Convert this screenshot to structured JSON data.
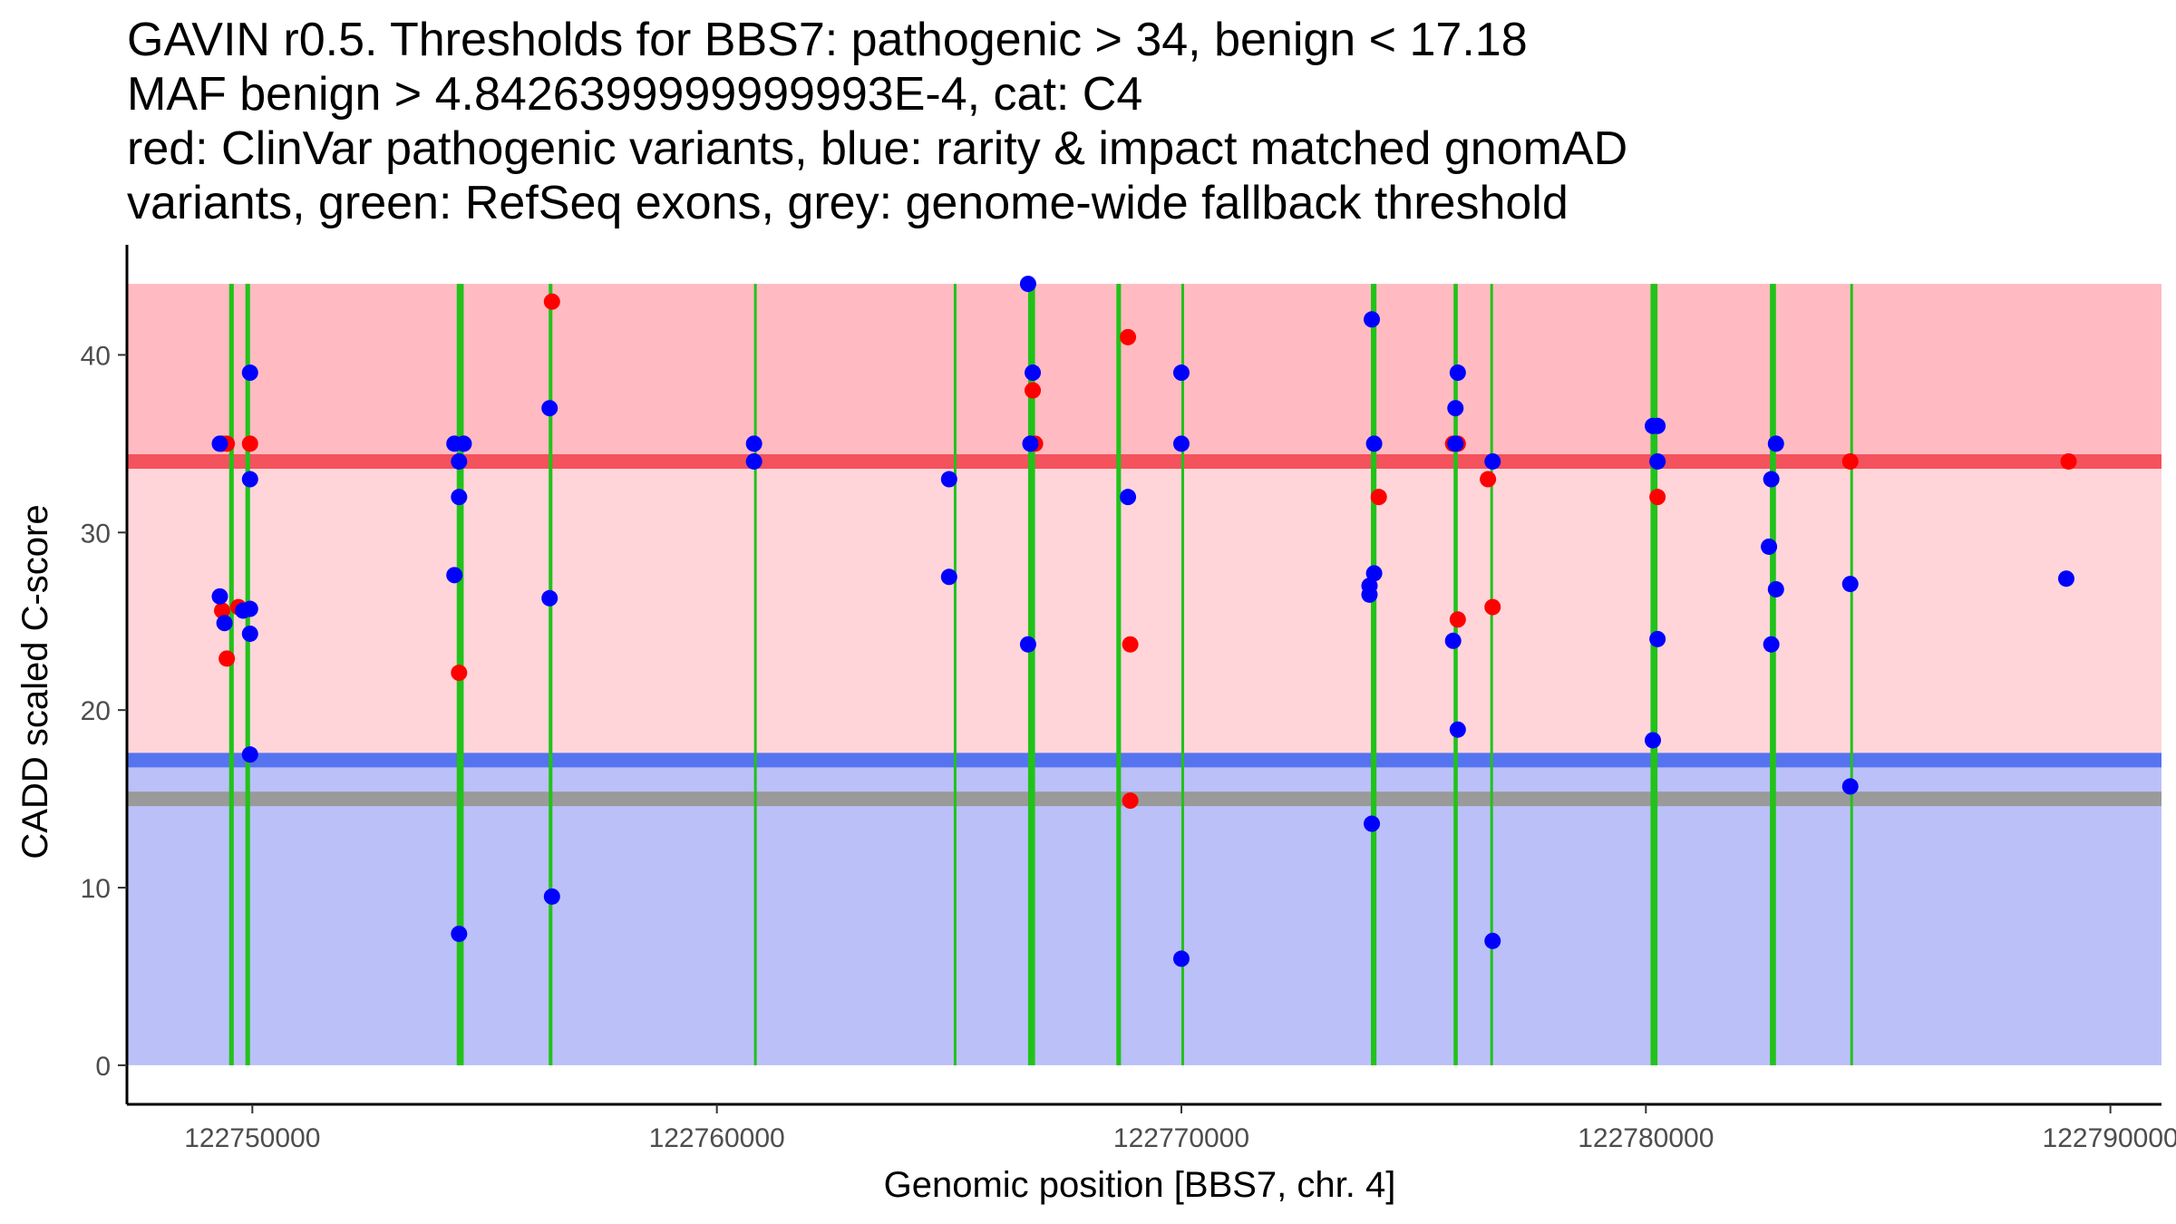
{
  "chart_data": {
    "type": "scatter",
    "title": [
      "GAVIN r0.5. Thresholds for BBS7: pathogenic > 34, benign < 17.18",
      "MAF benign > 4.8426399999999993E-4, cat: C4",
      "red: ClinVar pathogenic variants, blue: rarity & impact matched gnomAD",
      "variants, green: RefSeq exons, grey: genome-wide fallback threshold"
    ],
    "xlabel": "Genomic position [BBS7, chr. 4]",
    "ylabel": "CADD scaled C-score",
    "xlim": [
      122747300,
      122791100
    ],
    "ylim": [
      -2.2,
      46.2
    ],
    "x_ticks": [
      {
        "value": 122750000,
        "label": "122750000"
      },
      {
        "value": 122760000,
        "label": "122760000"
      },
      {
        "value": 122770000,
        "label": "122770000"
      },
      {
        "value": 122780000,
        "label": "122780000"
      },
      {
        "value": 122790000,
        "label": "122790000"
      }
    ],
    "y_ticks": [
      {
        "value": 0,
        "label": "0"
      },
      {
        "value": 10,
        "label": "10"
      },
      {
        "value": 20,
        "label": "20"
      },
      {
        "value": 30,
        "label": "30"
      },
      {
        "value": 40,
        "label": "40"
      }
    ],
    "colors": {
      "pathogenic_zone": "#ffd5da",
      "pathogenic_zone_upper": "#ffbbc1",
      "benign_zone": "#bbc0f9",
      "pathogenic_threshold": "#f4525d",
      "benign_threshold": "#5673f0",
      "fallback_threshold": "#9a9a9a",
      "exon": "#22c21a",
      "pathogenic_point": "#ff0000",
      "benign_point": "#0000ff"
    },
    "thresholds": {
      "pathogenic": 34,
      "benign": 17.18,
      "genome_wide_fallback": 15,
      "max_score": 44
    },
    "exons": [
      {
        "start": 122749500,
        "end": 122749600
      },
      {
        "start": 122749850,
        "end": 122749950
      },
      {
        "start": 122754400,
        "end": 122754550
      },
      {
        "start": 122756380,
        "end": 122756460
      },
      {
        "start": 122760800,
        "end": 122760830
      },
      {
        "start": 122765100,
        "end": 122765130
      },
      {
        "start": 122766700,
        "end": 122766850
      },
      {
        "start": 122768600,
        "end": 122768700
      },
      {
        "start": 122770000,
        "end": 122770030
      },
      {
        "start": 122774080,
        "end": 122774200
      },
      {
        "start": 122775860,
        "end": 122775950
      },
      {
        "start": 122776650,
        "end": 122776680
      },
      {
        "start": 122780100,
        "end": 122780250
      },
      {
        "start": 122782670,
        "end": 122782800
      },
      {
        "start": 122784400,
        "end": 122784430
      }
    ],
    "series": [
      {
        "name": "ClinVar pathogenic variants",
        "color": "#ff0000",
        "points": [
          {
            "x": 122749350,
            "y": 35
          },
          {
            "x": 122749450,
            "y": 35
          },
          {
            "x": 122749350,
            "y": 25.6
          },
          {
            "x": 122749700,
            "y": 25.8
          },
          {
            "x": 122749450,
            "y": 22.9
          },
          {
            "x": 122749950,
            "y": 35
          },
          {
            "x": 122754450,
            "y": 22.1
          },
          {
            "x": 122756450,
            "y": 43
          },
          {
            "x": 122766800,
            "y": 38
          },
          {
            "x": 122766850,
            "y": 35
          },
          {
            "x": 122768850,
            "y": 41
          },
          {
            "x": 122768900,
            "y": 23.7
          },
          {
            "x": 122768900,
            "y": 14.9
          },
          {
            "x": 122774250,
            "y": 32
          },
          {
            "x": 122775850,
            "y": 35
          },
          {
            "x": 122775950,
            "y": 35
          },
          {
            "x": 122775950,
            "y": 25.1
          },
          {
            "x": 122776600,
            "y": 33
          },
          {
            "x": 122776700,
            "y": 25.8
          },
          {
            "x": 122780250,
            "y": 32
          },
          {
            "x": 122784400,
            "y": 34
          },
          {
            "x": 122789100,
            "y": 34
          }
        ]
      },
      {
        "name": "rarity & impact matched gnomAD variants",
        "color": "#0000ff",
        "points": [
          {
            "x": 122749300,
            "y": 35
          },
          {
            "x": 122749300,
            "y": 26.4
          },
          {
            "x": 122749400,
            "y": 24.9
          },
          {
            "x": 122749800,
            "y": 25.6
          },
          {
            "x": 122749950,
            "y": 25.7
          },
          {
            "x": 122749950,
            "y": 24.3
          },
          {
            "x": 122749950,
            "y": 39
          },
          {
            "x": 122749950,
            "y": 33
          },
          {
            "x": 122749950,
            "y": 17.5
          },
          {
            "x": 122754350,
            "y": 35
          },
          {
            "x": 122754550,
            "y": 35
          },
          {
            "x": 122754450,
            "y": 34
          },
          {
            "x": 122754450,
            "y": 32
          },
          {
            "x": 122754350,
            "y": 27.6
          },
          {
            "x": 122754450,
            "y": 7.4
          },
          {
            "x": 122756400,
            "y": 37
          },
          {
            "x": 122756400,
            "y": 26.3
          },
          {
            "x": 122756450,
            "y": 9.5
          },
          {
            "x": 122760800,
            "y": 35
          },
          {
            "x": 122760800,
            "y": 34
          },
          {
            "x": 122765000,
            "y": 33
          },
          {
            "x": 122765000,
            "y": 27.5
          },
          {
            "x": 122766700,
            "y": 44
          },
          {
            "x": 122766800,
            "y": 39
          },
          {
            "x": 122766750,
            "y": 35
          },
          {
            "x": 122766700,
            "y": 23.7
          },
          {
            "x": 122768850,
            "y": 32
          },
          {
            "x": 122770000,
            "y": 39
          },
          {
            "x": 122770000,
            "y": 35
          },
          {
            "x": 122770000,
            "y": 6
          },
          {
            "x": 122774100,
            "y": 42
          },
          {
            "x": 122774150,
            "y": 35
          },
          {
            "x": 122774150,
            "y": 27.7
          },
          {
            "x": 122774050,
            "y": 27
          },
          {
            "x": 122774050,
            "y": 26.5
          },
          {
            "x": 122774100,
            "y": 13.6
          },
          {
            "x": 122775950,
            "y": 39
          },
          {
            "x": 122775900,
            "y": 37
          },
          {
            "x": 122775900,
            "y": 35
          },
          {
            "x": 122775850,
            "y": 23.9
          },
          {
            "x": 122775950,
            "y": 18.9
          },
          {
            "x": 122776700,
            "y": 34
          },
          {
            "x": 122776700,
            "y": 7
          },
          {
            "x": 122780150,
            "y": 36
          },
          {
            "x": 122780250,
            "y": 36
          },
          {
            "x": 122780250,
            "y": 34
          },
          {
            "x": 122780250,
            "y": 24
          },
          {
            "x": 122780150,
            "y": 18.3
          },
          {
            "x": 122782800,
            "y": 35
          },
          {
            "x": 122782700,
            "y": 33
          },
          {
            "x": 122782650,
            "y": 29.2
          },
          {
            "x": 122782800,
            "y": 26.8
          },
          {
            "x": 122782700,
            "y": 23.7
          },
          {
            "x": 122784400,
            "y": 27.1
          },
          {
            "x": 122784400,
            "y": 15.7
          },
          {
            "x": 122789050,
            "y": 27.4
          }
        ]
      }
    ]
  }
}
